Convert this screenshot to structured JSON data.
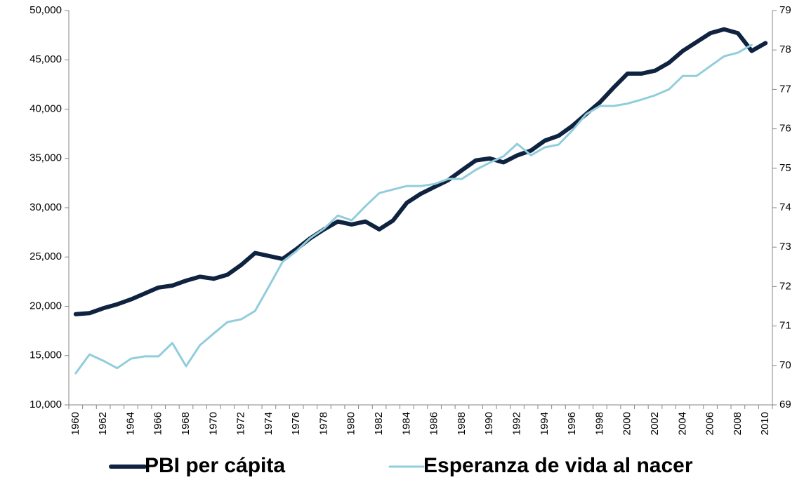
{
  "chart_data": {
    "type": "line",
    "categories": [
      "1960",
      null,
      "1962",
      null,
      "1964",
      null,
      "1966",
      null,
      "1968",
      null,
      "1970",
      null,
      "1972",
      null,
      "1974",
      null,
      "1976",
      null,
      "1978",
      null,
      "1980",
      null,
      "1982",
      null,
      "1984",
      null,
      "1986",
      null,
      "1988",
      null,
      "1990",
      null,
      "1992",
      null,
      "1994",
      null,
      "1996",
      null,
      "1998",
      null,
      "2000",
      null,
      "2002",
      null,
      "2004",
      null,
      "2006",
      null,
      "2008",
      null,
      "2010"
    ],
    "series": [
      {
        "name": "PBI per cápita",
        "color": "#0f2340",
        "values": [
          19200,
          19300,
          19800,
          20200,
          20700,
          21300,
          21900,
          22100,
          22600,
          23000,
          22800,
          23200,
          24200,
          25400,
          25100,
          24800,
          25800,
          26900,
          27800,
          28600,
          28300,
          28600,
          27800,
          28700,
          30500,
          31400,
          32100,
          32800,
          33800,
          34800,
          35000,
          34600,
          35300,
          35800,
          36800,
          37300,
          38300,
          39500,
          40700,
          42200,
          43600,
          43600,
          43900,
          44700,
          45900,
          46800,
          47700,
          48100,
          47700,
          45900,
          46700
        ]
      },
      {
        "name": "Esperanza de vida al nacer",
        "color": "#92cddc",
        "axis": "y2",
        "values": [
          69.8,
          70.28,
          70.12,
          69.93,
          70.17,
          70.23,
          70.23,
          70.57,
          69.98,
          70.51,
          70.81,
          71.1,
          71.17,
          71.38,
          72.0,
          72.63,
          72.9,
          73.23,
          73.47,
          73.8,
          73.68,
          74.04,
          74.37,
          74.46,
          74.55,
          74.55,
          74.6,
          74.73,
          74.73,
          74.96,
          75.14,
          75.3,
          75.62,
          75.33,
          75.53,
          75.6,
          75.96,
          76.37,
          76.58,
          76.58,
          76.64,
          76.74,
          76.85,
          77.0,
          77.34,
          77.34,
          77.59,
          77.84,
          77.93,
          78.13,
          null
        ]
      }
    ],
    "ylim": [
      10000,
      50000
    ],
    "yticks": [
      {
        "value": 10000,
        "label": "10,000"
      },
      {
        "value": 15000,
        "label": "15,000"
      },
      {
        "value": 20000,
        "label": "20,000"
      },
      {
        "value": 25000,
        "label": "25,000"
      },
      {
        "value": 30000,
        "label": "30,000"
      },
      {
        "value": 35000,
        "label": "35,000"
      },
      {
        "value": 40000,
        "label": "40,000"
      },
      {
        "value": 45000,
        "label": "45,000"
      },
      {
        "value": 50000,
        "label": "50,000"
      }
    ],
    "y2lim": [
      69,
      79
    ],
    "y2ticks": [
      69,
      70,
      71,
      72,
      73,
      74,
      75,
      76,
      77,
      78,
      79
    ],
    "grid": false,
    "legend": "bottom"
  }
}
